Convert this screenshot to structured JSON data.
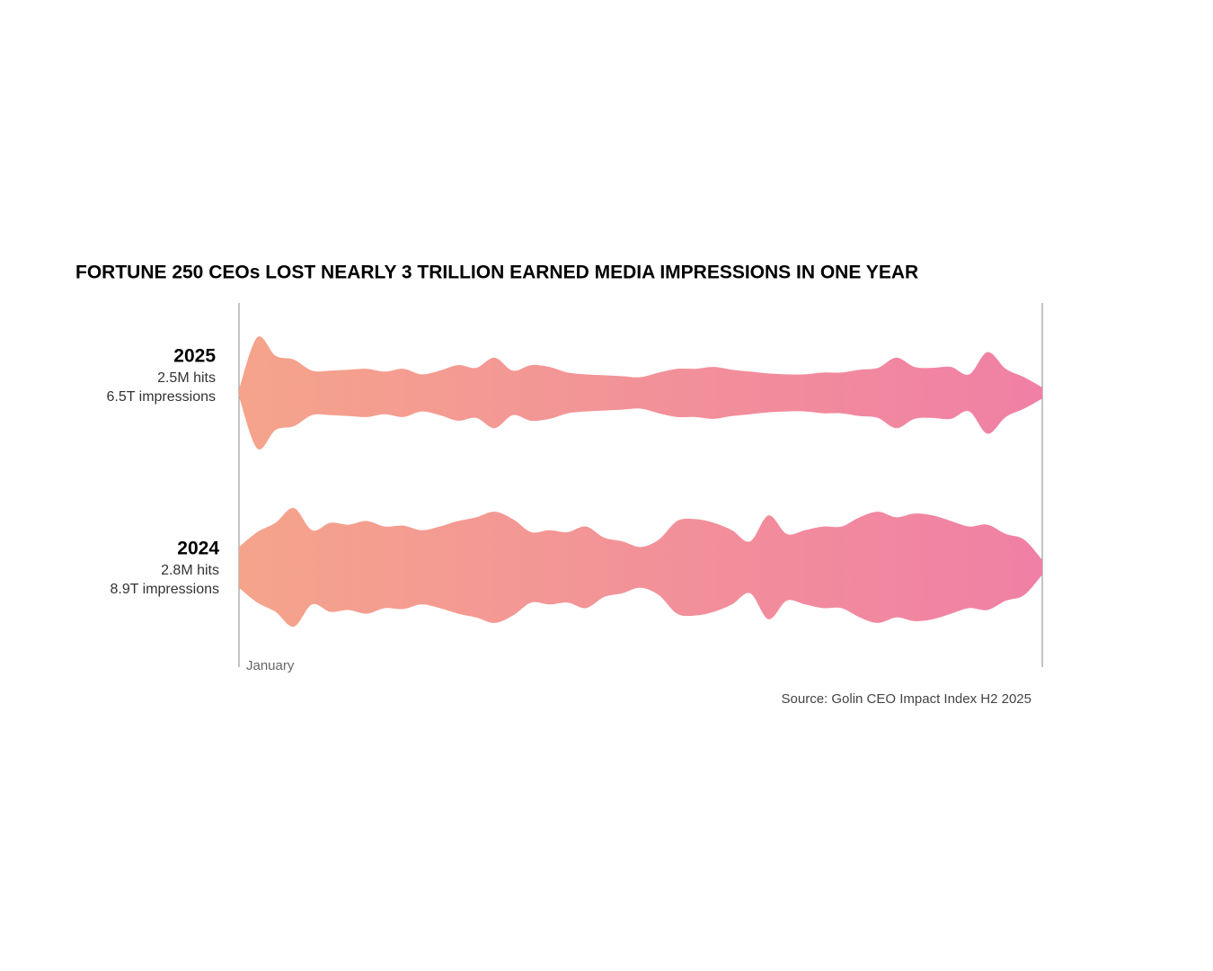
{
  "chart_data": {
    "type": "waveform",
    "title": "FORTUNE 250 CEOs LOST NEARLY 3 TRILLION EARNED MEDIA IMPRESSIONS IN ONE YEAR",
    "source": "Source: Golin CEO Impact Index H2 2025",
    "categories": [
      "January",
      null,
      null,
      null,
      null,
      null,
      null,
      null,
      null,
      null,
      null,
      null,
      null,
      null,
      null,
      null,
      null,
      null,
      null,
      null,
      null,
      null,
      null,
      null,
      null,
      null,
      null,
      null,
      null,
      null,
      null,
      null,
      null,
      null,
      null,
      null,
      null,
      null,
      null,
      null,
      null,
      null,
      null,
      null,
      null
    ],
    "color": [
      "#f5a48b",
      "#f080a5"
    ],
    "series": [
      {
        "name": "2025",
        "hits": "2.5M hits",
        "impressions": "6.5T impressions",
        "values": [
          4,
          60,
          40,
          36,
          24,
          24,
          25,
          26,
          23,
          26,
          20,
          24,
          30,
          27,
          38,
          24,
          30,
          28,
          22,
          20,
          19,
          18,
          17,
          22,
          26,
          26,
          28,
          25,
          23,
          21,
          20,
          20,
          22,
          22,
          25,
          27,
          38,
          28,
          27,
          28,
          20,
          44,
          26,
          17,
          6
        ]
      },
      {
        "name": "2024",
        "hits": "2.8M hits",
        "impressions": "8.9T impressions",
        "values": [
          22,
          38,
          48,
          64,
          40,
          48,
          46,
          50,
          44,
          45,
          40,
          44,
          50,
          54,
          60,
          52,
          38,
          40,
          38,
          44,
          32,
          28,
          22,
          30,
          50,
          52,
          48,
          40,
          28,
          56,
          36,
          40,
          44,
          44,
          54,
          60,
          54,
          58,
          56,
          50,
          44,
          46,
          36,
          30,
          8
        ]
      }
    ]
  }
}
